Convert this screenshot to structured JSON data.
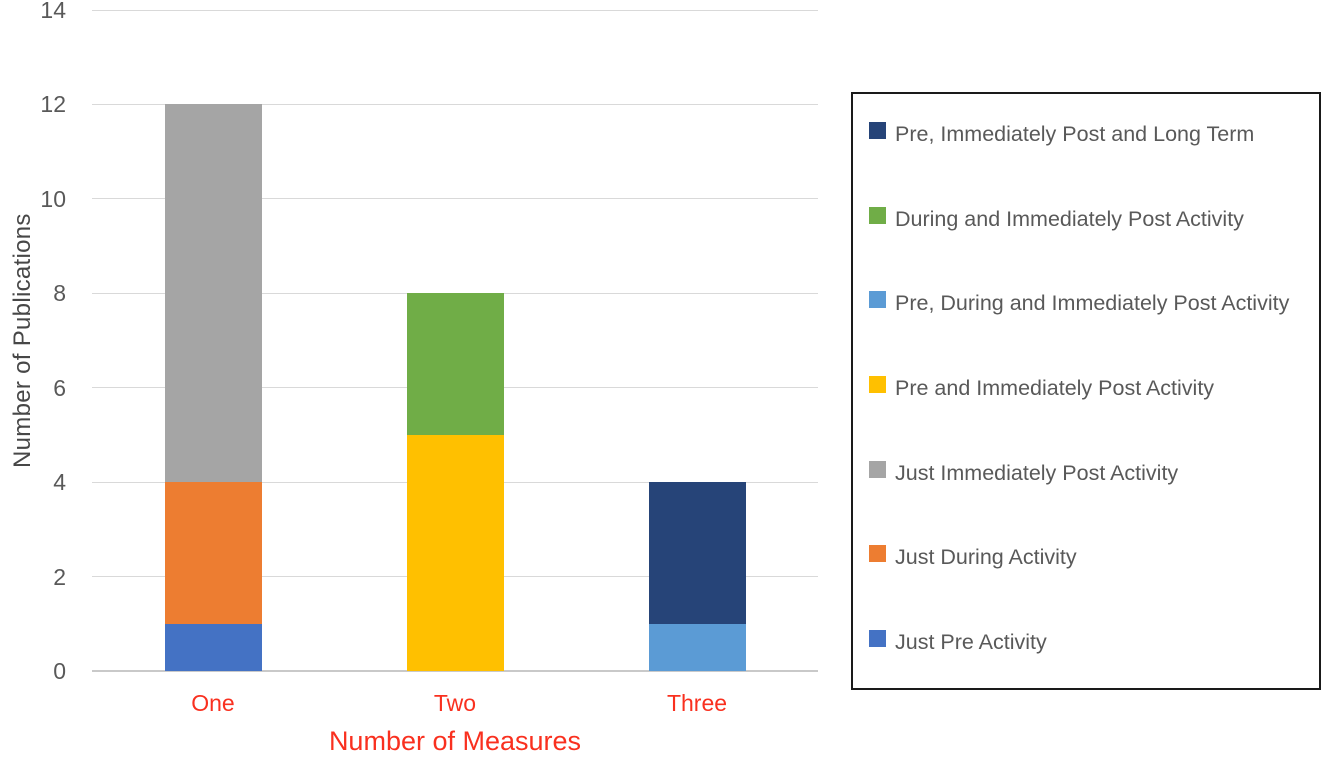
{
  "figure": {
    "background": "#FFFFFF"
  },
  "chart_data": {
    "type": "bar",
    "stacked": true,
    "title": "",
    "xlabel": "Number of Measures",
    "ylabel": "Number of Publications",
    "categories": [
      "One",
      "Two",
      "Three"
    ],
    "yticks": [
      0,
      2,
      4,
      6,
      8,
      10,
      12,
      14
    ],
    "ylim": [
      0,
      14
    ],
    "grid": true,
    "legend_position": "right-boxed",
    "legend_order": "reversed-of-series",
    "series": [
      {
        "name": "Just Pre Activity",
        "color": "#4472C4",
        "values": [
          1,
          0,
          0
        ]
      },
      {
        "name": "Just During Activity",
        "color": "#ED7D31",
        "values": [
          3,
          0,
          0
        ]
      },
      {
        "name": "Just Immediately Post Activity",
        "color": "#A5A5A5",
        "values": [
          8,
          0,
          0
        ]
      },
      {
        "name": "Pre and Immediately Post Activity",
        "color": "#FFC000",
        "values": [
          0,
          5,
          0
        ]
      },
      {
        "name": "Pre, During and Immediately Post Activity",
        "color": "#5B9BD5",
        "values": [
          0,
          0,
          1
        ]
      },
      {
        "name": "During and Immediately Post Activity",
        "color": "#70AD47",
        "values": [
          0,
          3,
          0
        ]
      },
      {
        "name": "Pre, Immediately Post and Long Term",
        "color": "#264478",
        "values": [
          0,
          0,
          3
        ]
      }
    ],
    "stack_totals": [
      12,
      8,
      4
    ],
    "colors": {
      "grid": "#D9D9D9",
      "baseline": "#C9C9C9",
      "axis_tick_text": "#595959",
      "axis_title_text": "#474747",
      "category_text": "#F9301F",
      "legend_text": "#595959",
      "legend_border": "#1A1A1A"
    }
  }
}
